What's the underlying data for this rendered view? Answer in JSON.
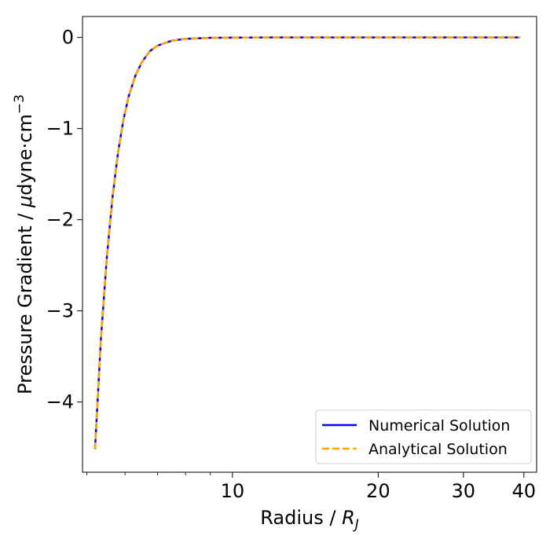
{
  "chart_data": {
    "type": "line",
    "xlabel": "Radius / R_J",
    "xlabel_parts": {
      "prefix": "Radius / ",
      "symbol": "R",
      "subscript": "J"
    },
    "ylabel": "Pressure Gradient / μdyne·cm⁻³",
    "ylabel_parts": {
      "prefix": "Pressure Gradient / ",
      "mu": "μ",
      "unit": "dyne·cm",
      "superscript": "−3"
    },
    "x_scale": "log",
    "xlim": [
      4.9,
      42.5
    ],
    "ylim": [
      -4.77,
      0.23
    ],
    "x_ticks_major": [
      10,
      20,
      30,
      40
    ],
    "x_tick_labels": [
      "10",
      "20",
      "30",
      "40"
    ],
    "x_ticks_minor": [
      5,
      6,
      7,
      8,
      9
    ],
    "y_ticks": [
      0,
      -1,
      -2,
      -3,
      -4
    ],
    "y_tick_labels": [
      "0",
      "−1",
      "−2",
      "−3",
      "−4"
    ],
    "grid": false,
    "legend_position": "lower-right",
    "series": [
      {
        "name": "Numerical Solution",
        "color": "#0000ff",
        "style": "solid",
        "x": [
          5.2,
          5.35,
          5.5,
          5.65,
          5.8,
          5.95,
          6.1,
          6.3,
          6.5,
          6.75,
          7.0,
          7.5,
          8.0,
          9.0,
          10.0,
          12.0,
          15.0,
          20.0,
          30.0,
          39.3
        ],
        "y": [
          -4.52,
          -3.3,
          -2.42,
          -1.76,
          -1.27,
          -0.91,
          -0.65,
          -0.42,
          -0.27,
          -0.15,
          -0.09,
          -0.035,
          -0.015,
          -0.004,
          -0.0015,
          0,
          0,
          0,
          0,
          0
        ]
      },
      {
        "name": "Analytical Solution",
        "color": "#ffa500",
        "style": "dashed",
        "x": [
          5.2,
          5.35,
          5.5,
          5.65,
          5.8,
          5.95,
          6.1,
          6.3,
          6.5,
          6.75,
          7.0,
          7.5,
          8.0,
          9.0,
          10.0,
          12.0,
          15.0,
          20.0,
          30.0,
          39.3
        ],
        "y": [
          -4.52,
          -3.3,
          -2.42,
          -1.76,
          -1.27,
          -0.91,
          -0.65,
          -0.42,
          -0.27,
          -0.15,
          -0.09,
          -0.035,
          -0.015,
          -0.004,
          -0.0015,
          0,
          0,
          0,
          0,
          0
        ]
      }
    ]
  }
}
